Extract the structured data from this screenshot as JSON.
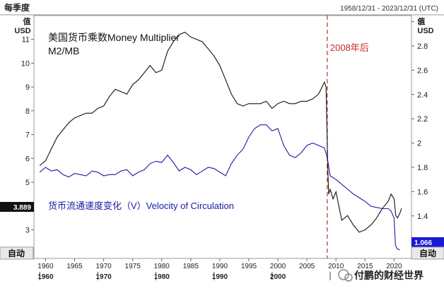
{
  "header": {
    "frequency": "每季度",
    "date_range": "1958/12/31 - 2023/12/31 (UTC)"
  },
  "axes": {
    "left_top_label": "值",
    "left_unit": "USD",
    "right_top_label": "值",
    "right_unit": "USD",
    "auto_left": "自动",
    "auto_right": "自动"
  },
  "annotations": {
    "money_multiplier_line1": "美国货币乘数Money Multiplier",
    "money_multiplier_line2": "M2/MB",
    "velocity_label": "货币流通速度变化（V）Velocity of Circulation",
    "marker_label": "2008年后"
  },
  "badges": {
    "left_value": "3.889",
    "right_value": "1.066"
  },
  "watermark": "付鹏的财经世界",
  "colors": {
    "multiplier": "#111111",
    "velocity": "#1a1aa6",
    "marker": "#c62828",
    "left_badge": "#111111",
    "right_badge": "#1a1ad6"
  },
  "chart_data": {
    "type": "line",
    "x_unit": "year",
    "xlim": [
      1958,
      2023
    ],
    "x_ticks": [
      1960,
      1965,
      1970,
      1975,
      1980,
      1985,
      1990,
      1995,
      2000,
      2005,
      2010,
      2015,
      2020
    ],
    "x_tick_labels": [
      "1960",
      "1965",
      "1970",
      "1975",
      "1980",
      "1985",
      "1990",
      "1995",
      "2000",
      "2005",
      "2010",
      "2015",
      "2020"
    ],
    "x_decade_labels": [
      "1960",
      "1970",
      "1980",
      "1990",
      "2000"
    ],
    "left_axis": {
      "ylim": [
        1.8,
        12.0
      ],
      "ticks": [
        2,
        3,
        4,
        5,
        6,
        7,
        8,
        9,
        10,
        11
      ]
    },
    "right_axis": {
      "ylim": [
        1.05,
        3.05
      ],
      "ticks": [
        1.2,
        1.4,
        1.6,
        1.8,
        2,
        2.2,
        2.4,
        2.6,
        2.8,
        3
      ]
    },
    "vertical_marker": {
      "x": 2008.5
    },
    "series": [
      {
        "axis": "left",
        "x": [
          1959,
          1960,
          1961,
          1962,
          1963,
          1964,
          1965,
          1966,
          1967,
          1968,
          1969,
          1970,
          1971,
          1972,
          1973,
          1974,
          1975,
          1976,
          1977,
          1978,
          1979,
          1980,
          1981,
          1982,
          1983,
          1984,
          1985,
          1986,
          1987,
          1988,
          1989,
          1990,
          1991,
          1992,
          1993,
          1994,
          1995,
          1996,
          1997,
          1998,
          1999,
          2000,
          2001,
          2002,
          2003,
          2004,
          2005,
          2006,
          2007,
          2008,
          2008.3,
          2008.6,
          2008.75,
          2009,
          2009.5,
          2010,
          2011,
          2012,
          2013,
          2014,
          2015,
          2016,
          2017,
          2018,
          2019,
          2019.5,
          2020,
          2020.3,
          2020.6,
          2021,
          2021.3
        ],
        "values": [
          5.7,
          5.9,
          6.4,
          6.9,
          7.2,
          7.5,
          7.7,
          7.8,
          7.9,
          7.9,
          8.1,
          8.2,
          8.6,
          8.9,
          8.8,
          8.7,
          9.1,
          9.3,
          9.6,
          9.9,
          9.6,
          9.7,
          10.5,
          10.9,
          11.2,
          11.3,
          11.1,
          11.0,
          10.9,
          10.6,
          10.3,
          9.9,
          9.3,
          8.7,
          8.3,
          8.2,
          8.3,
          8.3,
          8.3,
          8.4,
          8.1,
          8.3,
          8.4,
          8.3,
          8.3,
          8.4,
          8.4,
          8.5,
          8.7,
          9.2,
          9.0,
          5.5,
          4.5,
          4.7,
          4.3,
          4.6,
          3.4,
          3.6,
          3.2,
          2.9,
          3.0,
          3.2,
          3.5,
          3.9,
          4.2,
          4.5,
          4.3,
          3.6,
          3.5,
          3.7,
          3.9
        ]
      },
      {
        "axis": "right",
        "x": [
          1959,
          1960,
          1961,
          1962,
          1963,
          1964,
          1965,
          1966,
          1967,
          1968,
          1969,
          1970,
          1971,
          1972,
          1973,
          1974,
          1975,
          1976,
          1977,
          1978,
          1979,
          1980,
          1981,
          1982,
          1983,
          1984,
          1985,
          1986,
          1987,
          1988,
          1989,
          1990,
          1991,
          1992,
          1993,
          1994,
          1995,
          1996,
          1997,
          1998,
          1999,
          2000,
          2001,
          2002,
          2003,
          2004,
          2005,
          2006,
          2007,
          2008,
          2008.5,
          2009,
          2010,
          2011,
          2012,
          2013,
          2014,
          2015,
          2016,
          2017,
          2018,
          2019,
          2019.5,
          2020,
          2020.25,
          2020.5,
          2021
        ],
        "values": [
          1.76,
          1.8,
          1.77,
          1.78,
          1.74,
          1.72,
          1.75,
          1.74,
          1.73,
          1.77,
          1.76,
          1.73,
          1.74,
          1.74,
          1.77,
          1.78,
          1.73,
          1.76,
          1.78,
          1.83,
          1.85,
          1.84,
          1.9,
          1.84,
          1.77,
          1.8,
          1.78,
          1.74,
          1.77,
          1.8,
          1.79,
          1.76,
          1.73,
          1.83,
          1.9,
          1.95,
          2.05,
          2.12,
          2.15,
          2.15,
          2.1,
          2.12,
          1.98,
          1.9,
          1.88,
          1.92,
          1.98,
          2.0,
          1.98,
          1.96,
          1.88,
          1.73,
          1.7,
          1.66,
          1.62,
          1.58,
          1.55,
          1.52,
          1.48,
          1.47,
          1.46,
          1.46,
          1.44,
          1.38,
          1.16,
          1.13,
          1.12
        ]
      }
    ]
  }
}
